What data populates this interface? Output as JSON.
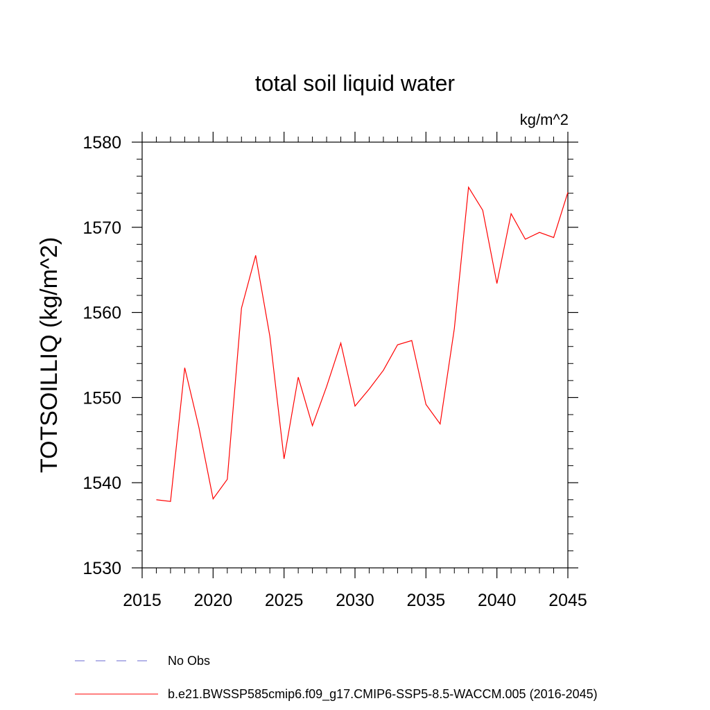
{
  "chart_data": {
    "type": "line",
    "title": "total soil liquid water",
    "units": "kg/m^2",
    "ylabel": "TOTSOILLIQ  (kg/m^2)",
    "xlabel": "",
    "xlim": [
      2015,
      2045
    ],
    "ylim": [
      1530,
      1580
    ],
    "x_ticks": [
      2015,
      2020,
      2025,
      2030,
      2035,
      2040,
      2045
    ],
    "y_ticks": [
      1530,
      1540,
      1550,
      1560,
      1570,
      1580
    ],
    "x_minor_step": 1,
    "y_minor_step": 2,
    "grid": false,
    "series": [
      {
        "name": "b.e21.BWSSP585cmip6.f09_g17.CMIP6-SSP5-8.5-WACCM.005 (2016-2045)",
        "color": "#ff0000",
        "x": [
          2016,
          2017,
          2018,
          2019,
          2020,
          2021,
          2022,
          2023,
          2024,
          2025,
          2026,
          2027,
          2028,
          2029,
          2030,
          2031,
          2032,
          2033,
          2034,
          2035,
          2036,
          2037,
          2038,
          2039,
          2040,
          2041,
          2042,
          2043,
          2044,
          2045
        ],
        "y": [
          1538.0,
          1537.8,
          1553.5,
          1546.5,
          1538.1,
          1540.4,
          1560.5,
          1566.7,
          1557.2,
          1542.8,
          1552.4,
          1546.7,
          1551.3,
          1556.4,
          1549.0,
          1551.0,
          1553.2,
          1556.2,
          1556.7,
          1549.2,
          1546.9,
          1558.1,
          1574.7,
          1572.0,
          1563.4,
          1571.6,
          1568.6,
          1569.4,
          1568.8,
          1574.1
        ]
      }
    ],
    "legend": {
      "placement": "bottom-left",
      "entries": [
        {
          "label": "No Obs",
          "color": "#6a6ad2",
          "style": "dashed"
        },
        {
          "label": "b.e21.BWSSP585cmip6.f09_g17.CMIP6-SSP5-8.5-WACCM.005 (2016-2045)",
          "color": "#ff0000",
          "style": "solid"
        }
      ]
    }
  }
}
